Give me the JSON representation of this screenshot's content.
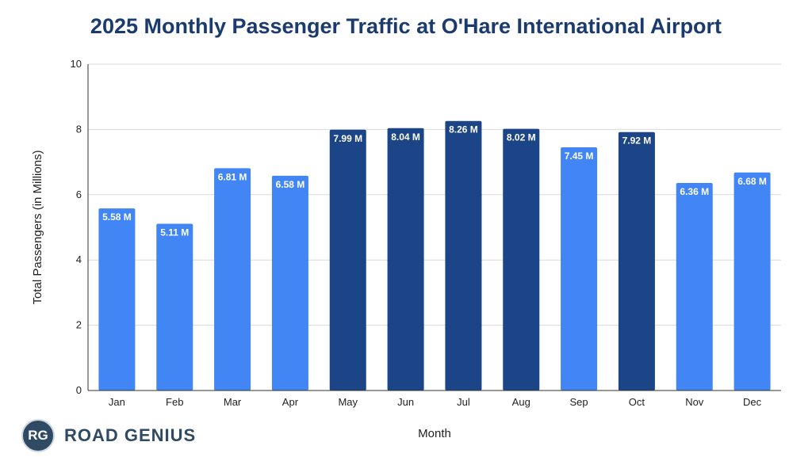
{
  "chart_data": {
    "type": "bar",
    "title": "2025 Monthly Passenger Traffic at O'Hare International Airport",
    "xlabel": "Month",
    "ylabel": "Total Passengers (in Millions)",
    "ylim": [
      0,
      10
    ],
    "yticks": [
      0,
      2,
      4,
      6,
      8,
      10
    ],
    "grid": true,
    "categories": [
      "Jan",
      "Feb",
      "Mar",
      "Apr",
      "May",
      "Jun",
      "Jul",
      "Aug",
      "Sep",
      "Oct",
      "Nov",
      "Dec"
    ],
    "values": [
      5.58,
      5.11,
      6.81,
      6.58,
      7.99,
      8.04,
      8.26,
      8.02,
      7.45,
      7.92,
      6.36,
      6.68
    ],
    "labels": [
      "5.58 M",
      "5.11 M",
      "6.81 M",
      "6.58 M",
      "7.99 M",
      "8.04 M",
      "8.26 M",
      "8.02 M",
      "7.45 M",
      "7.92 M",
      "6.36 M",
      "6.68 M"
    ],
    "highlighted": [
      false,
      false,
      false,
      false,
      true,
      true,
      true,
      true,
      false,
      true,
      false,
      false
    ]
  },
  "colors": {
    "bar": "#4285f4",
    "bar_highlight": "#1c4587",
    "grid": "#d9d9d9",
    "axis": "#333333"
  },
  "logo": {
    "badge": "RG",
    "text": "ROAD GENIUS"
  }
}
